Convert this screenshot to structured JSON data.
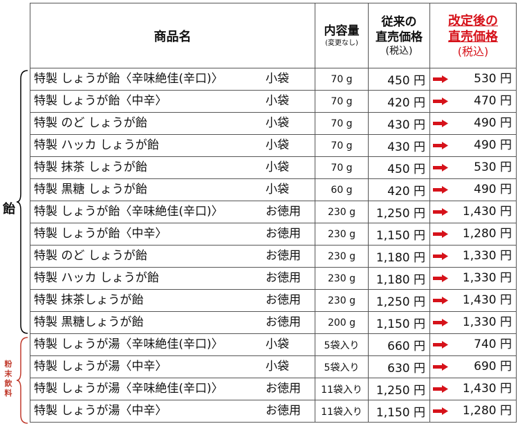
{
  "header": {
    "name": "商品名",
    "volume_main": "内容量",
    "volume_sub": "(変更なし)",
    "old_main1": "従来の",
    "old_main2": "直売価格",
    "old_sub": "(税込)",
    "new_main1": "改定後の",
    "new_main2": "直売価格",
    "new_sub": "(税込)"
  },
  "groups": [
    {
      "label": "飴",
      "color": "#000000"
    },
    {
      "label": "粉末飲料",
      "color": "#c0392b"
    }
  ],
  "rows": [
    {
      "name": "特製 しょうが飴〈辛味絶佳(辛口)〉",
      "size": "小袋",
      "volume": "70 g",
      "old": "450 円",
      "new": "530 円"
    },
    {
      "name": "特製 しょうが飴〈中辛〉",
      "size": "小袋",
      "volume": "70 g",
      "old": "420 円",
      "new": "470 円"
    },
    {
      "name": "特製 のど しょうが飴",
      "size": "小袋",
      "volume": "70 g",
      "old": "430 円",
      "new": "490 円"
    },
    {
      "name": "特製 ハッカ しょうが飴",
      "size": "小袋",
      "volume": "70 g",
      "old": "430 円",
      "new": "490 円"
    },
    {
      "name": "特製 抹茶 しょうが飴",
      "size": "小袋",
      "volume": "70 g",
      "old": "450 円",
      "new": "530 円"
    },
    {
      "name": "特製 黒糖 しょうが飴",
      "size": "小袋",
      "volume": "60 g",
      "old": "420 円",
      "new": "490 円"
    },
    {
      "name": "特製 しょうが飴〈辛味絶佳(辛口)〉",
      "size": "お徳用",
      "volume": "230 g",
      "old": "1,250 円",
      "new": "1,430 円"
    },
    {
      "name": "特製 しょうが飴〈中辛〉",
      "size": "お徳用",
      "volume": "230 g",
      "old": "1,150 円",
      "new": "1,280 円"
    },
    {
      "name": "特製 のど しょうが飴",
      "size": "お徳用",
      "volume": "230 g",
      "old": "1,180 円",
      "new": "1,330 円"
    },
    {
      "name": "特製 ハッカ しょうが飴",
      "size": "お徳用",
      "volume": "230 g",
      "old": "1,180 円",
      "new": "1,330 円"
    },
    {
      "name": "特製 抹茶しょうが飴",
      "size": "お徳用",
      "volume": "230 g",
      "old": "1,250 円",
      "new": "1,430 円"
    },
    {
      "name": "特製 黒糖しょうが飴",
      "size": "お徳用",
      "volume": "200 g",
      "old": "1,150 円",
      "new": "1,330 円"
    },
    {
      "name": "特製 しょうが湯〈辛味絶佳(辛口)〉",
      "size": "小袋",
      "volume": "5袋入り",
      "old": "660 円",
      "new": "740 円"
    },
    {
      "name": "特製 しょうが湯〈中辛〉",
      "size": "小袋",
      "volume": "5袋入り",
      "old": "630 円",
      "new": "690 円"
    },
    {
      "name": "特製 しょうが湯〈辛味絶佳(辛口)〉",
      "size": "お徳用",
      "volume": "11袋入り",
      "old": "1,250 円",
      "new": "1,430 円"
    },
    {
      "name": "特製 しょうが湯〈中辛〉",
      "size": "お徳用",
      "volume": "11袋入り",
      "old": "1,150 円",
      "new": "1,280 円"
    }
  ],
  "colors": {
    "arrow": "#d6121a",
    "new_header": "#d6121a",
    "border": "#555555"
  }
}
